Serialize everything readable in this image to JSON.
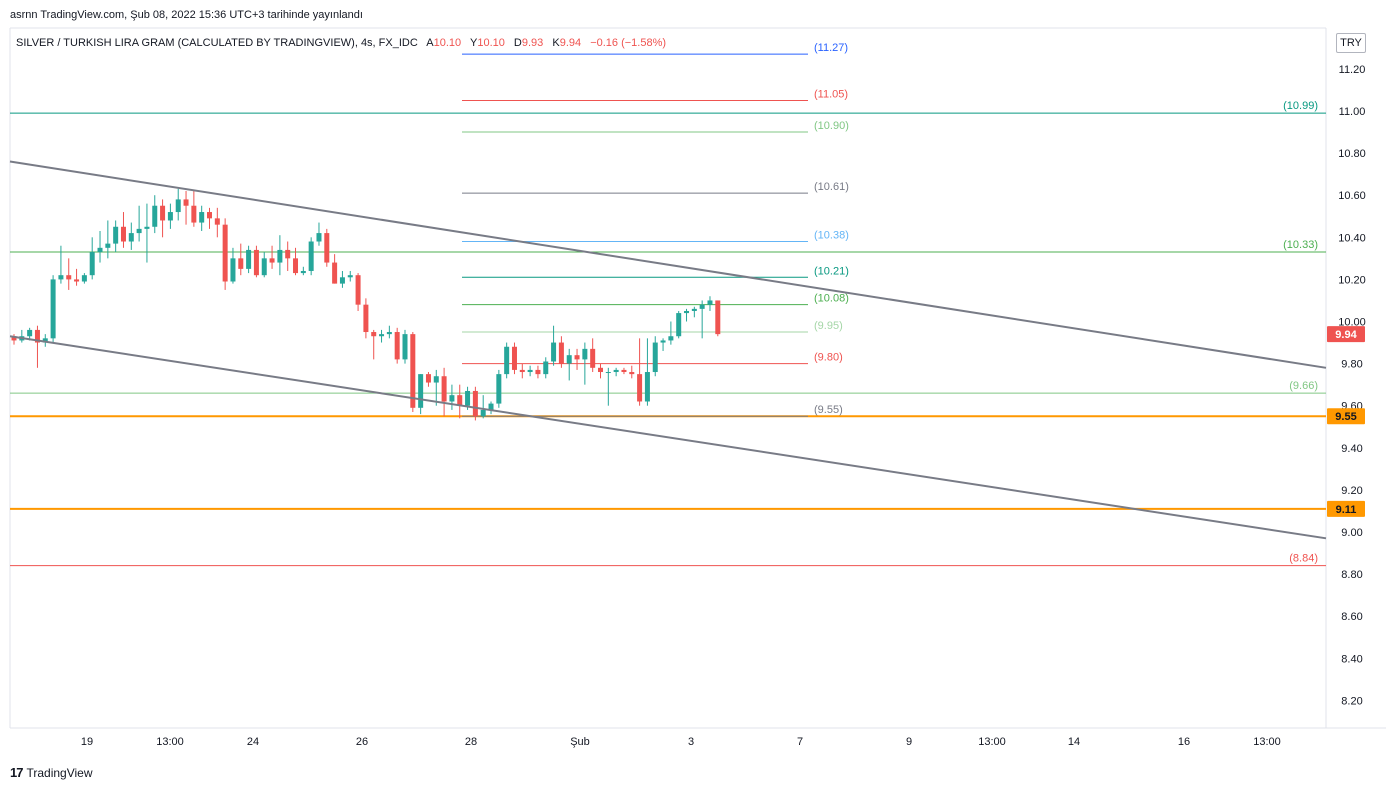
{
  "header": {
    "caption": "asrnn TradingView.com, Şub 08, 2022 15:36 UTC+3 tarihinde yayınlandı"
  },
  "footer": {
    "logo_text": "TradingView",
    "logo_mark": "17"
  },
  "currency_button": "TRY",
  "legend": {
    "symbol": "SILVER / TURKISH LIRA GRAM (CALCULATED BY TRADINGVIEW), 4s, FX_IDC",
    "o_label": "A",
    "o_value": "10.10",
    "h_label": "Y",
    "h_value": "10.10",
    "l_label": "D",
    "l_value": "9.93",
    "c_label": "K",
    "c_value": "9.94",
    "change": "−0.16 (−1.58%)"
  },
  "colors": {
    "up": "#26a69a",
    "down": "#ef5350",
    "trend": "#787b86",
    "orange": "#ff9800",
    "teal": "#089981",
    "green": "#81c784"
  },
  "chart_data": {
    "type": "candlestick",
    "y_axis": {
      "min": 8.1,
      "max": 11.35,
      "ticks": [
        "11.20",
        "11.00",
        "10.80",
        "10.60",
        "10.40",
        "10.20",
        "10.00",
        "9.80",
        "9.60",
        "9.40",
        "9.20",
        "9.00",
        "8.80",
        "8.60",
        "8.40",
        "8.20"
      ]
    },
    "x_axis": {
      "ticks": [
        "19",
        "13:00",
        "24",
        "26",
        "28",
        "Şub",
        "3",
        "7",
        "9",
        "13:00",
        "14",
        "16",
        "13:00"
      ]
    },
    "last_price": "9.94",
    "horizontal_levels": [
      {
        "value": 10.99,
        "label": "(10.99)",
        "color": "#089981",
        "span": "full"
      },
      {
        "value": 10.33,
        "label": "(10.33)",
        "color": "#4caf50",
        "span": "full"
      },
      {
        "value": 9.66,
        "label": "(9.66)",
        "color": "#81c784",
        "span": "full"
      },
      {
        "value": 8.84,
        "label": "(8.84)",
        "color": "#ef5350",
        "span": "full"
      },
      {
        "value": 9.55,
        "label": "9.55",
        "color": "#ff9800",
        "span": "full",
        "badge": true
      },
      {
        "value": 9.11,
        "label": "9.11",
        "color": "#ff9800",
        "span": "full",
        "badge": true
      }
    ],
    "fib_levels": [
      {
        "value": 11.27,
        "label": "(11.27)",
        "color": "#2962ff"
      },
      {
        "value": 11.05,
        "label": "(11.05)",
        "color": "#ef5350"
      },
      {
        "value": 10.9,
        "label": "(10.90)",
        "color": "#81c784"
      },
      {
        "value": 10.61,
        "label": "(10.61)",
        "color": "#787b86"
      },
      {
        "value": 10.38,
        "label": "(10.38)",
        "color": "#64b5f6"
      },
      {
        "value": 10.21,
        "label": "(10.21)",
        "color": "#089981"
      },
      {
        "value": 10.08,
        "label": "(10.08)",
        "color": "#4caf50"
      },
      {
        "value": 9.95,
        "label": "(9.95)",
        "color": "#a5d6a7"
      },
      {
        "value": 9.8,
        "label": "(9.80)",
        "color": "#ef5350"
      },
      {
        "value": 9.55,
        "label": "(9.55)",
        "color": "#787b86"
      }
    ],
    "trendlines": [
      {
        "from": [
          0,
          10.76
        ],
        "to": [
          1,
          9.78
        ]
      },
      {
        "from": [
          0,
          9.93
        ],
        "to": [
          1,
          8.97
        ]
      }
    ],
    "candles": [
      [
        9.93,
        9.94,
        9.89,
        9.91
      ],
      [
        9.91,
        9.96,
        9.9,
        9.93
      ],
      [
        9.93,
        9.97,
        9.91,
        9.96
      ],
      [
        9.96,
        9.98,
        9.78,
        9.9
      ],
      [
        9.9,
        9.94,
        9.88,
        9.92
      ],
      [
        9.92,
        10.22,
        9.9,
        10.2
      ],
      [
        10.2,
        10.36,
        10.18,
        10.22
      ],
      [
        10.22,
        10.3,
        10.15,
        10.2
      ],
      [
        10.2,
        10.25,
        10.17,
        10.19
      ],
      [
        10.19,
        10.23,
        10.18,
        10.22
      ],
      [
        10.22,
        10.4,
        10.2,
        10.33
      ],
      [
        10.33,
        10.43,
        10.28,
        10.35
      ],
      [
        10.35,
        10.48,
        10.3,
        10.37
      ],
      [
        10.37,
        10.48,
        10.33,
        10.45
      ],
      [
        10.45,
        10.52,
        10.35,
        10.38
      ],
      [
        10.38,
        10.47,
        10.34,
        10.42
      ],
      [
        10.42,
        10.55,
        10.38,
        10.44
      ],
      [
        10.44,
        10.56,
        10.28,
        10.45
      ],
      [
        10.45,
        10.6,
        10.42,
        10.55
      ],
      [
        10.55,
        10.58,
        10.4,
        10.48
      ],
      [
        10.48,
        10.56,
        10.44,
        10.52
      ],
      [
        10.52,
        10.63,
        10.48,
        10.58
      ],
      [
        10.58,
        10.62,
        10.46,
        10.55
      ],
      [
        10.55,
        10.62,
        10.45,
        10.47
      ],
      [
        10.47,
        10.55,
        10.43,
        10.52
      ],
      [
        10.52,
        10.54,
        10.44,
        10.49
      ],
      [
        10.49,
        10.54,
        10.4,
        10.46
      ],
      [
        10.46,
        10.49,
        10.15,
        10.19
      ],
      [
        10.19,
        10.35,
        10.18,
        10.3
      ],
      [
        10.3,
        10.37,
        10.22,
        10.25
      ],
      [
        10.25,
        10.36,
        10.23,
        10.34
      ],
      [
        10.34,
        10.36,
        10.21,
        10.22
      ],
      [
        10.22,
        10.33,
        10.21,
        10.3
      ],
      [
        10.3,
        10.36,
        10.25,
        10.28
      ],
      [
        10.28,
        10.41,
        10.22,
        10.34
      ],
      [
        10.34,
        10.38,
        10.24,
        10.3
      ],
      [
        10.3,
        10.35,
        10.22,
        10.23
      ],
      [
        10.23,
        10.26,
        10.22,
        10.24
      ],
      [
        10.24,
        10.4,
        10.22,
        10.38
      ],
      [
        10.38,
        10.47,
        10.36,
        10.42
      ],
      [
        10.42,
        10.44,
        10.26,
        10.28
      ],
      [
        10.28,
        10.32,
        10.18,
        10.18
      ],
      [
        10.18,
        10.24,
        10.16,
        10.21
      ],
      [
        10.21,
        10.24,
        10.19,
        10.22
      ],
      [
        10.22,
        10.23,
        10.05,
        10.08
      ],
      [
        10.08,
        10.11,
        9.92,
        9.95
      ],
      [
        9.95,
        9.96,
        9.82,
        9.93
      ],
      [
        9.93,
        9.96,
        9.9,
        9.94
      ],
      [
        9.94,
        9.98,
        9.92,
        9.95
      ],
      [
        9.95,
        9.97,
        9.8,
        9.82
      ],
      [
        9.82,
        9.96,
        9.8,
        9.94
      ],
      [
        9.94,
        9.95,
        9.57,
        9.59
      ],
      [
        9.59,
        9.75,
        9.56,
        9.75
      ],
      [
        9.75,
        9.76,
        9.69,
        9.71
      ],
      [
        9.71,
        9.77,
        9.6,
        9.74
      ],
      [
        9.74,
        9.78,
        9.55,
        9.62
      ],
      [
        9.62,
        9.7,
        9.58,
        9.65
      ],
      [
        9.65,
        9.7,
        9.54,
        9.6
      ],
      [
        9.6,
        9.69,
        9.58,
        9.67
      ],
      [
        9.67,
        9.69,
        9.53,
        9.55
      ],
      [
        9.55,
        9.65,
        9.54,
        9.58
      ],
      [
        9.58,
        9.62,
        9.56,
        9.61
      ],
      [
        9.61,
        9.77,
        9.59,
        9.75
      ],
      [
        9.75,
        9.9,
        9.73,
        9.88
      ],
      [
        9.88,
        9.9,
        9.75,
        9.77
      ],
      [
        9.77,
        9.8,
        9.73,
        9.76
      ],
      [
        9.76,
        9.79,
        9.74,
        9.77
      ],
      [
        9.77,
        9.79,
        9.73,
        9.75
      ],
      [
        9.75,
        9.83,
        9.73,
        9.81
      ],
      [
        9.81,
        9.98,
        9.79,
        9.9
      ],
      [
        9.9,
        9.93,
        9.78,
        9.8
      ],
      [
        9.8,
        9.87,
        9.72,
        9.84
      ],
      [
        9.84,
        9.87,
        9.77,
        9.82
      ],
      [
        9.82,
        9.9,
        9.7,
        9.87
      ],
      [
        9.87,
        9.92,
        9.76,
        9.78
      ],
      [
        9.78,
        9.8,
        9.73,
        9.76
      ],
      [
        9.76,
        9.78,
        9.6,
        9.76
      ],
      [
        9.76,
        9.78,
        9.74,
        9.77
      ],
      [
        9.77,
        9.78,
        9.75,
        9.76
      ],
      [
        9.76,
        9.79,
        9.73,
        9.75
      ],
      [
        9.75,
        9.92,
        9.6,
        9.62
      ],
      [
        9.62,
        9.92,
        9.6,
        9.76
      ],
      [
        9.76,
        9.93,
        9.74,
        9.9
      ],
      [
        9.9,
        9.92,
        9.86,
        9.91
      ],
      [
        9.91,
        10.0,
        9.89,
        9.93
      ],
      [
        9.93,
        10.05,
        9.92,
        10.04
      ],
      [
        10.04,
        10.06,
        10.0,
        10.05
      ],
      [
        10.05,
        10.07,
        10.02,
        10.06
      ],
      [
        10.06,
        10.1,
        9.92,
        10.08
      ],
      [
        10.08,
        10.12,
        10.05,
        10.1
      ],
      [
        10.1,
        10.1,
        9.93,
        9.94
      ]
    ]
  }
}
